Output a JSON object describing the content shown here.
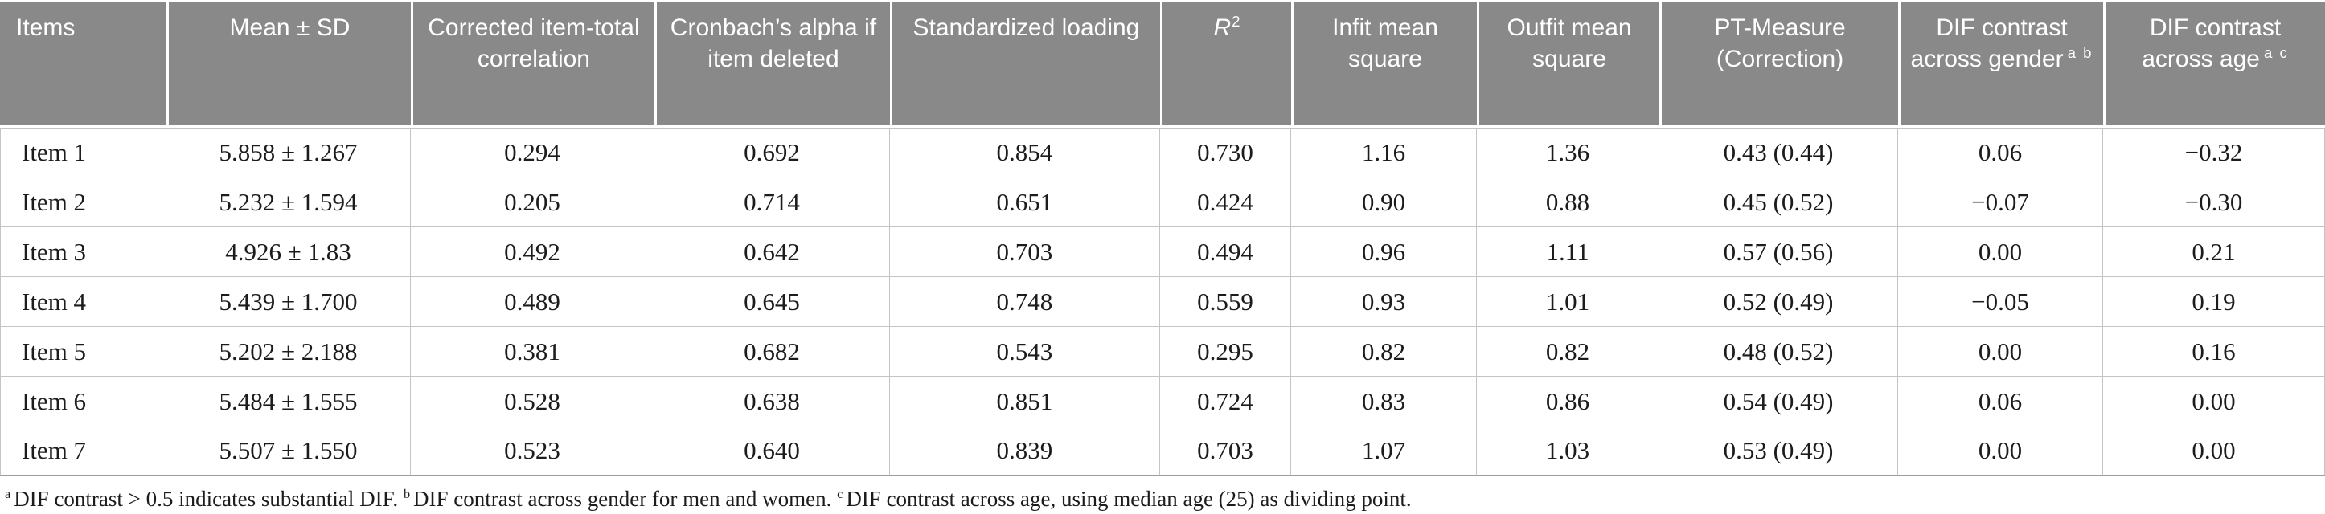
{
  "colors": {
    "header_bg": "#898989",
    "header_text": "#ffffff",
    "grid_line": "#c4c4c4",
    "table_bottom_line": "#9c9c9c",
    "body_text": "#1c1c1c"
  },
  "table": {
    "columns": [
      {
        "key": "items",
        "label": "Items"
      },
      {
        "key": "mean_sd",
        "label": "Mean ± SD"
      },
      {
        "key": "corrected_item_total_correlation",
        "label": "Corrected item-total correlation"
      },
      {
        "key": "cronbachs_alpha_if_item_deleted",
        "label": "Cronbach’s alpha if item deleted"
      },
      {
        "key": "standardized_loading",
        "label": "Standardized loading"
      },
      {
        "key": "r_squared",
        "label": "R",
        "sup": "2",
        "italic": true,
        "sup_attached": true
      },
      {
        "key": "infit_mean_square",
        "label": "Infit mean square"
      },
      {
        "key": "outfit_mean_square",
        "label": "Outfit mean square"
      },
      {
        "key": "pt_measure_correction",
        "label": "PT-Measure (Correction)"
      },
      {
        "key": "dif_contrast_gender",
        "label": "DIF contrast across gender",
        "sup": "a b"
      },
      {
        "key": "dif_contrast_age",
        "label": "DIF contrast across age",
        "sup": "a c"
      }
    ],
    "rows": [
      [
        "Item 1",
        "5.858 ± 1.267",
        "0.294",
        "0.692",
        "0.854",
        "0.730",
        "1.16",
        "1.36",
        "0.43 (0.44)",
        "0.06",
        "−0.32"
      ],
      [
        "Item 2",
        "5.232 ± 1.594",
        "0.205",
        "0.714",
        "0.651",
        "0.424",
        "0.90",
        "0.88",
        "0.45 (0.52)",
        "−0.07",
        "−0.30"
      ],
      [
        "Item 3",
        "4.926 ± 1.83",
        "0.492",
        "0.642",
        "0.703",
        "0.494",
        "0.96",
        "1.11",
        "0.57 (0.56)",
        "0.00",
        "0.21"
      ],
      [
        "Item 4",
        "5.439 ± 1.700",
        "0.489",
        "0.645",
        "0.748",
        "0.559",
        "0.93",
        "1.01",
        "0.52 (0.49)",
        "−0.05",
        "0.19"
      ],
      [
        "Item 5",
        "5.202 ± 2.188",
        "0.381",
        "0.682",
        "0.543",
        "0.295",
        "0.82",
        "0.82",
        "0.48 (0.52)",
        "0.00",
        "0.16"
      ],
      [
        "Item 6",
        "5.484 ± 1.555",
        "0.528",
        "0.638",
        "0.851",
        "0.724",
        "0.83",
        "0.86",
        "0.54 (0.49)",
        "0.06",
        "0.00"
      ],
      [
        "Item 7",
        "5.507 ± 1.550",
        "0.523",
        "0.640",
        "0.839",
        "0.703",
        "1.07",
        "1.03",
        "0.53 (0.49)",
        "0.00",
        "0.00"
      ]
    ],
    "footnotes": [
      {
        "sup": "a",
        "text": "DIF contrast > 0.5 indicates substantial DIF."
      },
      {
        "sup": "b",
        "text": "DIF contrast across gender for men and women."
      },
      {
        "sup": "c",
        "text": "DIF contrast across age, using median age (25) as dividing point."
      }
    ]
  }
}
